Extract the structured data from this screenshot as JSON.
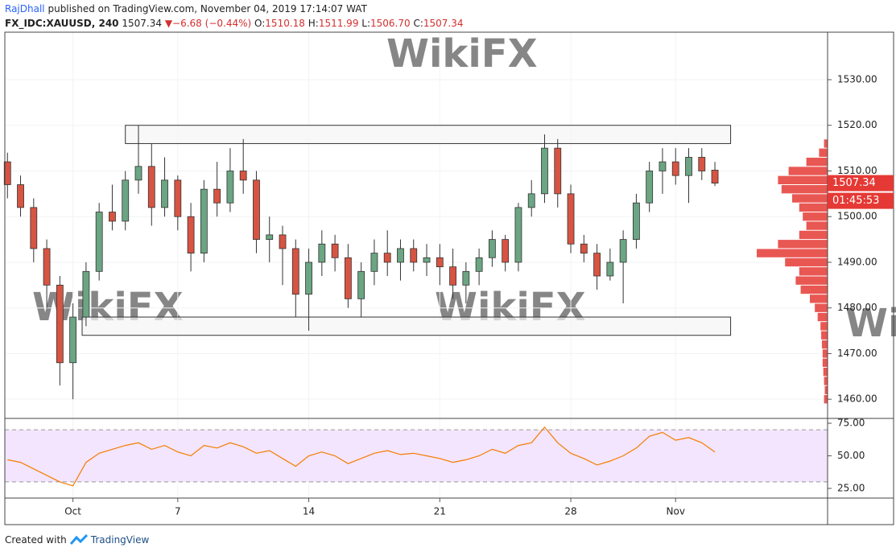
{
  "header": {
    "author": "RajDhall",
    "published": "published on TradingView.com, November 04, 2019 17:14:07 WAT",
    "symbol": "FX_IDC:XAUUSD, 240",
    "last": "1507.34",
    "arrow": "▼",
    "change": "−6.68 (−0.44%)",
    "ohlc": [
      {
        "label": "O:",
        "value": "1510.18"
      },
      {
        "label": "H:",
        "value": "1511.99"
      },
      {
        "label": "L:",
        "value": "1506.70"
      },
      {
        "label": "C:",
        "value": "1507.34"
      }
    ],
    "countdown": "01:45:53",
    "watermark": "WikiFX"
  },
  "footer": {
    "text": "Created with",
    "brand": "TradingView"
  },
  "chart_data": [
    {
      "type": "candlestick",
      "x": [
        -2.5,
        -2,
        -1.5,
        -1,
        -0.5,
        0,
        0.5,
        1,
        1.5,
        2,
        2.5,
        3,
        3.5,
        4,
        4.5,
        5,
        5.5,
        6,
        6.5,
        7,
        7.5,
        8,
        8.5,
        9,
        9.5,
        10,
        10.5,
        11,
        11.5,
        12,
        12.5,
        13,
        13.5,
        14,
        14.5,
        15,
        15.5,
        16,
        16.5,
        17,
        17.5,
        18,
        18.5,
        19,
        19.5,
        20,
        20.5,
        21,
        21.5,
        22,
        22.5,
        23,
        23.5,
        24,
        24.5
      ],
      "open": [
        1512,
        1507,
        1502,
        1493,
        1485,
        1468,
        1478,
        1488,
        1501,
        1499,
        1508,
        1511,
        1502,
        1508,
        1500,
        1492,
        1506,
        1503,
        1510,
        1508,
        1495,
        1496,
        1493,
        1483,
        1490,
        1494,
        1491,
        1482,
        1488,
        1492,
        1490,
        1493,
        1490,
        1491,
        1489,
        1485,
        1488,
        1491,
        1495,
        1490,
        1502,
        1505,
        1515,
        1505,
        1494,
        1492,
        1487,
        1490,
        1495,
        1503,
        1510,
        1512,
        1509,
        1513,
        1510.18
      ],
      "high": [
        1514,
        1509,
        1504,
        1495,
        1487,
        1481,
        1490,
        1503,
        1507,
        1510,
        1520,
        1516,
        1513,
        1509,
        1503,
        1508,
        1512,
        1515,
        1517,
        1510,
        1500,
        1498,
        1495,
        1493,
        1497,
        1496,
        1494,
        1490,
        1495,
        1497,
        1495,
        1495,
        1494,
        1494,
        1493,
        1490,
        1493,
        1497,
        1496,
        1503,
        1508,
        1518,
        1517,
        1507,
        1496,
        1494,
        1493,
        1497,
        1505,
        1512,
        1515,
        1515,
        1515,
        1515,
        1511.99
      ],
      "low": [
        1504,
        1500,
        1490,
        1480,
        1463,
        1460,
        1476,
        1486,
        1497,
        1497,
        1505,
        1498,
        1500,
        1497,
        1488,
        1490,
        1500,
        1501,
        1505,
        1492,
        1490,
        1485,
        1478,
        1475,
        1487,
        1488,
        1480,
        1478,
        1485,
        1487,
        1486,
        1488,
        1487,
        1485,
        1482,
        1481,
        1485,
        1489,
        1488,
        1488,
        1500,
        1503,
        1502,
        1492,
        1490,
        1484,
        1486,
        1481,
        1493,
        1501,
        1505,
        1507,
        1503,
        1508,
        1506.7
      ],
      "close": [
        1507,
        1502,
        1493,
        1485,
        1468,
        1478,
        1488,
        1501,
        1499,
        1508,
        1511,
        1502,
        1508,
        1500,
        1492,
        1506,
        1503,
        1510,
        1508,
        1495,
        1496,
        1493,
        1483,
        1490,
        1494,
        1491,
        1482,
        1488,
        1492,
        1490,
        1493,
        1490,
        1491,
        1489,
        1485,
        1488,
        1491,
        1495,
        1490,
        1502,
        1505,
        1515,
        1505,
        1494,
        1492,
        1487,
        1490,
        1495,
        1503,
        1510,
        1512,
        1509,
        1513,
        1510,
        1507.34
      ],
      "up_color": "#6ba583",
      "down_color": "#d75442",
      "xlim": [
        -2.6,
        28.8
      ],
      "xticks": [
        {
          "value": 0,
          "label": "Oct"
        },
        {
          "value": 4,
          "label": "7"
        },
        {
          "value": 9,
          "label": "14"
        },
        {
          "value": 14,
          "label": "21"
        },
        {
          "value": 19,
          "label": "28"
        },
        {
          "value": 23,
          "label": "Nov"
        }
      ],
      "ylim": [
        1455.8,
        1540.4
      ],
      "yticks": [
        {
          "value": 1460,
          "label": "1460.00"
        },
        {
          "value": 1470,
          "label": "1470.00"
        },
        {
          "value": 1480,
          "label": "1480.00"
        },
        {
          "value": 1490,
          "label": "1490.00"
        },
        {
          "value": 1500,
          "label": "1500.00"
        },
        {
          "value": 1510,
          "label": "1510.00"
        },
        {
          "value": 1520,
          "label": "1520.00"
        },
        {
          "value": 1530,
          "label": "1530.00"
        }
      ],
      "grid": true,
      "zones": [
        {
          "x": [
            2,
            25.1
          ],
          "y": [
            1516,
            1520
          ]
        },
        {
          "x": [
            0.35,
            25.1
          ],
          "y": [
            1474,
            1478
          ]
        }
      ],
      "volume_profile": {
        "color": "#e53935",
        "levels": [
          1460,
          1462,
          1464,
          1466,
          1468,
          1470,
          1472,
          1474,
          1476,
          1478,
          1480,
          1482,
          1484,
          1486,
          1488,
          1490,
          1492,
          1494,
          1496,
          1498,
          1500,
          1502,
          1504,
          1506,
          1508,
          1510,
          1512,
          1514,
          1516
        ],
        "values": [
          5,
          4,
          5,
          6,
          7,
          7,
          8,
          9,
          10,
          14,
          18,
          25,
          38,
          45,
          40,
          60,
          100,
          70,
          40,
          30,
          35,
          40,
          50,
          65,
          70,
          55,
          30,
          12,
          5
        ]
      }
    },
    {
      "type": "line",
      "name": "RSI",
      "x": [
        -2.5,
        -2,
        -1.5,
        -1,
        -0.5,
        0,
        0.5,
        1,
        1.5,
        2,
        2.5,
        3,
        3.5,
        4,
        4.5,
        5,
        5.5,
        6,
        6.5,
        7,
        7.5,
        8,
        8.5,
        9,
        9.5,
        10,
        10.5,
        11,
        11.5,
        12,
        12.5,
        13,
        13.5,
        14,
        14.5,
        15,
        15.5,
        16,
        16.5,
        17,
        17.5,
        18,
        18.5,
        19,
        19.5,
        20,
        20.5,
        21,
        21.5,
        22,
        22.5,
        23,
        23.5,
        24,
        24.5
      ],
      "values": [
        47,
        45,
        40,
        35,
        30,
        27,
        45,
        52,
        55,
        58,
        60,
        55,
        58,
        53,
        50,
        58,
        56,
        60,
        57,
        52,
        54,
        48,
        42,
        50,
        53,
        50,
        44,
        48,
        52,
        54,
        51,
        52,
        50,
        48,
        45,
        47,
        50,
        55,
        52,
        58,
        60,
        72,
        60,
        52,
        48,
        43,
        46,
        50,
        56,
        65,
        68,
        62,
        64,
        60,
        53
      ],
      "color": "#f57c00",
      "band": [
        30,
        70
      ],
      "band_color": "#f3e5fd",
      "ylim": [
        17.6,
        78.1
      ],
      "yticks": [
        {
          "value": 25,
          "label": "25.00"
        },
        {
          "value": 50,
          "label": "50.00"
        },
        {
          "value": 75,
          "label": "75.00"
        }
      ]
    }
  ]
}
